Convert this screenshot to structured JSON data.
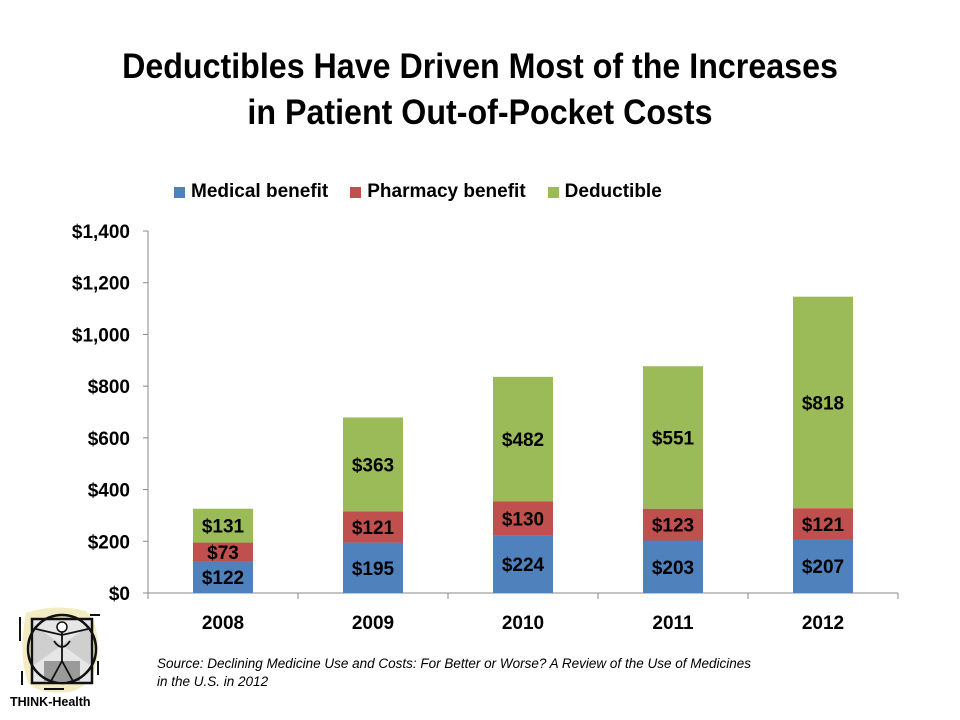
{
  "chart_data": {
    "type": "bar",
    "stacked": true,
    "title": "Deductibles Have Driven Most of the Increases in Patient Out-of-Pocket Costs",
    "title_lines": [
      "Deductibles Have Driven Most of the Increases",
      "in Patient Out-of-Pocket Costs"
    ],
    "categories": [
      "2008",
      "2009",
      "2010",
      "2011",
      "2012"
    ],
    "series": [
      {
        "name": "Medical benefit",
        "color": "#4F81BD",
        "values": [
          122,
          195,
          224,
          203,
          207
        ],
        "labels": [
          "$122",
          "$195",
          "$224",
          "$203",
          "$207"
        ]
      },
      {
        "name": "Pharmacy benefit",
        "color": "#C0504D",
        "values": [
          73,
          121,
          130,
          123,
          121
        ],
        "labels": [
          "$73",
          "$121",
          "$130",
          "$123",
          "$121"
        ]
      },
      {
        "name": "Deductible",
        "color": "#9BBB59",
        "values": [
          131,
          363,
          482,
          551,
          818
        ],
        "labels": [
          "$131",
          "$363",
          "$482",
          "$551",
          "$818"
        ]
      }
    ],
    "xlabel": "",
    "ylabel": "",
    "ylim": [
      0,
      1400
    ],
    "yticks": [
      0,
      200,
      400,
      600,
      800,
      1000,
      1200,
      1400
    ],
    "ytick_labels": [
      "$0",
      "$200",
      "$400",
      "$600",
      "$800",
      "$1,000",
      "$1,200",
      "$1,400"
    ],
    "grid": false,
    "legend_position": "top"
  },
  "source_lines": [
    "Source: Declining Medicine Use and Costs: For Better or Worse? A Review of the Use of Medicines",
    "in the U.S. in 2012"
  ],
  "logo": {
    "label": "THINK-Health",
    "icon": "vitruvian-man-icon"
  }
}
